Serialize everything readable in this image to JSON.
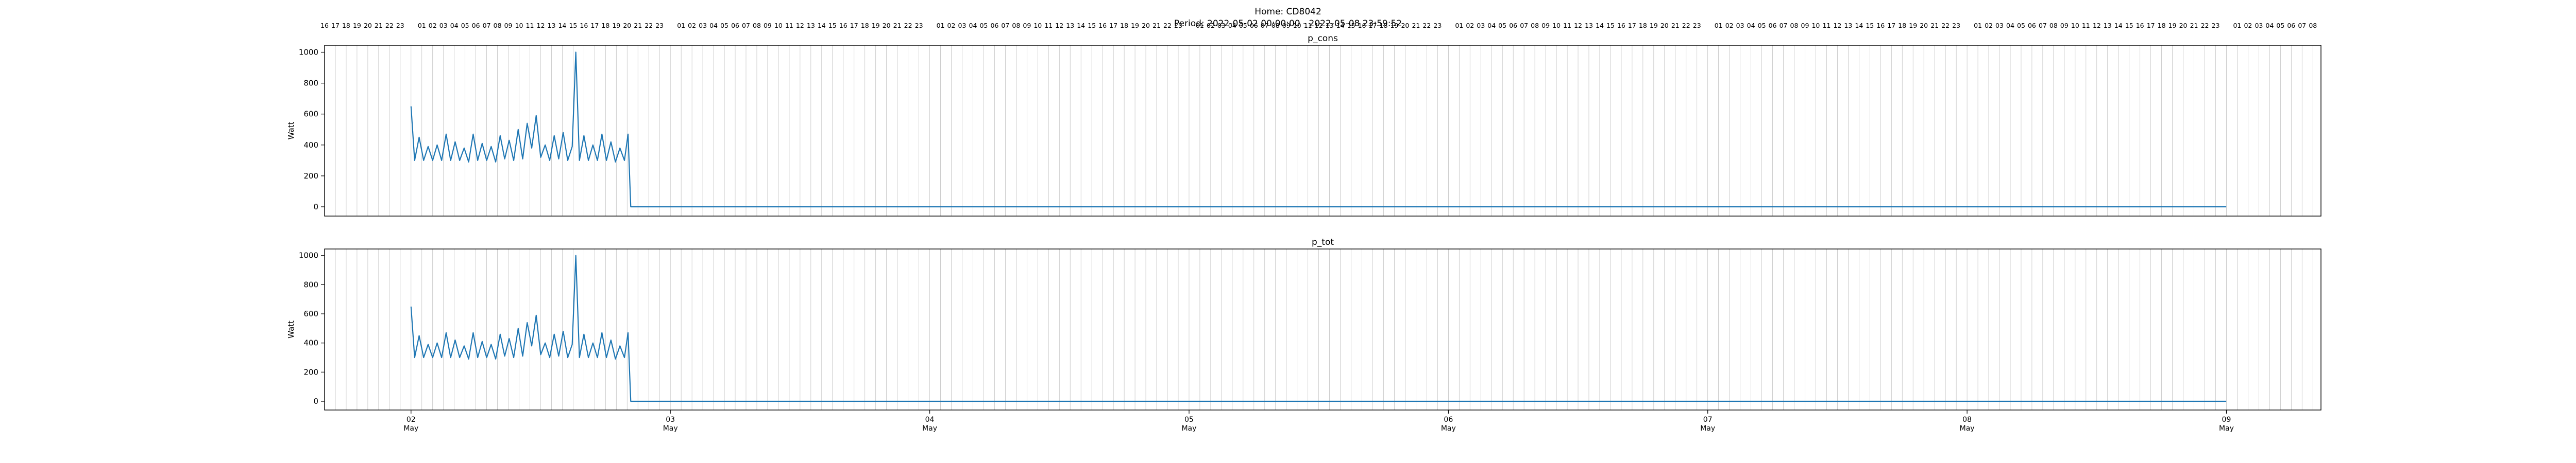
{
  "figure": {
    "title": "Home: CD8042",
    "subtitle": "Period: 2022-05-02 00:00:00 - 2022-05-08 23:59:52",
    "line_color": "#1f77b4",
    "hour_line_color": "#a9a9a9"
  },
  "chart_data": [
    {
      "type": "line",
      "title": "p_cons",
      "xlabel": "",
      "ylabel": "Watt",
      "ylim": [
        -60,
        1045
      ],
      "yticks": [
        0,
        200,
        400,
        600,
        800,
        1000
      ],
      "xlim": [
        "2022-05-01 16:00",
        "2022-05-09 08:45"
      ],
      "grid": "vertical line at every hour",
      "top_hour_labels": true,
      "series": [
        {
          "points": [
            [
              "2022-05-02 00:00",
              650
            ],
            [
              "2022-05-02 00:20",
              300
            ],
            [
              "2022-05-02 00:45",
              450
            ],
            [
              "2022-05-02 01:10",
              300
            ],
            [
              "2022-05-02 01:35",
              390
            ],
            [
              "2022-05-02 02:00",
              300
            ],
            [
              "2022-05-02 02:25",
              400
            ],
            [
              "2022-05-02 02:50",
              300
            ],
            [
              "2022-05-02 03:15",
              470
            ],
            [
              "2022-05-02 03:40",
              300
            ],
            [
              "2022-05-02 04:05",
              420
            ],
            [
              "2022-05-02 04:30",
              300
            ],
            [
              "2022-05-02 04:55",
              380
            ],
            [
              "2022-05-02 05:20",
              290
            ],
            [
              "2022-05-02 05:45",
              470
            ],
            [
              "2022-05-02 06:10",
              300
            ],
            [
              "2022-05-02 06:35",
              410
            ],
            [
              "2022-05-02 07:00",
              300
            ],
            [
              "2022-05-02 07:25",
              390
            ],
            [
              "2022-05-02 07:50",
              290
            ],
            [
              "2022-05-02 08:15",
              460
            ],
            [
              "2022-05-02 08:40",
              310
            ],
            [
              "2022-05-02 09:05",
              430
            ],
            [
              "2022-05-02 09:30",
              300
            ],
            [
              "2022-05-02 09:55",
              500
            ],
            [
              "2022-05-02 10:20",
              310
            ],
            [
              "2022-05-02 10:45",
              540
            ],
            [
              "2022-05-02 11:10",
              380
            ],
            [
              "2022-05-02 11:35",
              590
            ],
            [
              "2022-05-02 12:00",
              320
            ],
            [
              "2022-05-02 12:25",
              400
            ],
            [
              "2022-05-02 12:50",
              300
            ],
            [
              "2022-05-02 13:15",
              460
            ],
            [
              "2022-05-02 13:40",
              310
            ],
            [
              "2022-05-02 14:05",
              480
            ],
            [
              "2022-05-02 14:30",
              300
            ],
            [
              "2022-05-02 14:55",
              390
            ],
            [
              "2022-05-02 15:15",
              1000
            ],
            [
              "2022-05-02 15:35",
              300
            ],
            [
              "2022-05-02 16:00",
              460
            ],
            [
              "2022-05-02 16:25",
              300
            ],
            [
              "2022-05-02 16:50",
              400
            ],
            [
              "2022-05-02 17:15",
              300
            ],
            [
              "2022-05-02 17:40",
              470
            ],
            [
              "2022-05-02 18:05",
              300
            ],
            [
              "2022-05-02 18:30",
              420
            ],
            [
              "2022-05-02 18:55",
              290
            ],
            [
              "2022-05-02 19:20",
              380
            ],
            [
              "2022-05-02 19:45",
              300
            ],
            [
              "2022-05-02 20:05",
              470
            ],
            [
              "2022-05-02 20:20",
              0
            ],
            [
              "2022-05-08 23:59",
              0
            ]
          ]
        }
      ]
    },
    {
      "type": "line",
      "title": "p_tot",
      "xlabel": "",
      "ylabel": "Watt",
      "ylim": [
        -60,
        1045
      ],
      "yticks": [
        0,
        200,
        400,
        600,
        800,
        1000
      ],
      "xlim": [
        "2022-05-01 16:00",
        "2022-05-09 08:45"
      ],
      "grid": "vertical line at every hour",
      "top_hour_labels": false,
      "bottom_day_ticks": [
        {
          "x": "2022-05-02 00:00",
          "day": "02",
          "month": "May"
        },
        {
          "x": "2022-05-03 00:00",
          "day": "03",
          "month": "May"
        },
        {
          "x": "2022-05-04 00:00",
          "day": "04",
          "month": "May"
        },
        {
          "x": "2022-05-05 00:00",
          "day": "05",
          "month": "May"
        },
        {
          "x": "2022-05-06 00:00",
          "day": "06",
          "month": "May"
        },
        {
          "x": "2022-05-07 00:00",
          "day": "07",
          "month": "May"
        },
        {
          "x": "2022-05-08 00:00",
          "day": "08",
          "month": "May"
        },
        {
          "x": "2022-05-09 00:00",
          "day": "09",
          "month": "May"
        }
      ],
      "series": [
        {
          "points": [
            [
              "2022-05-02 00:00",
              650
            ],
            [
              "2022-05-02 00:20",
              300
            ],
            [
              "2022-05-02 00:45",
              450
            ],
            [
              "2022-05-02 01:10",
              300
            ],
            [
              "2022-05-02 01:35",
              390
            ],
            [
              "2022-05-02 02:00",
              300
            ],
            [
              "2022-05-02 02:25",
              400
            ],
            [
              "2022-05-02 02:50",
              300
            ],
            [
              "2022-05-02 03:15",
              470
            ],
            [
              "2022-05-02 03:40",
              300
            ],
            [
              "2022-05-02 04:05",
              420
            ],
            [
              "2022-05-02 04:30",
              300
            ],
            [
              "2022-05-02 04:55",
              380
            ],
            [
              "2022-05-02 05:20",
              290
            ],
            [
              "2022-05-02 05:45",
              470
            ],
            [
              "2022-05-02 06:10",
              300
            ],
            [
              "2022-05-02 06:35",
              410
            ],
            [
              "2022-05-02 07:00",
              300
            ],
            [
              "2022-05-02 07:25",
              390
            ],
            [
              "2022-05-02 07:50",
              290
            ],
            [
              "2022-05-02 08:15",
              460
            ],
            [
              "2022-05-02 08:40",
              310
            ],
            [
              "2022-05-02 09:05",
              430
            ],
            [
              "2022-05-02 09:30",
              300
            ],
            [
              "2022-05-02 09:55",
              500
            ],
            [
              "2022-05-02 10:20",
              310
            ],
            [
              "2022-05-02 10:45",
              540
            ],
            [
              "2022-05-02 11:10",
              380
            ],
            [
              "2022-05-02 11:35",
              590
            ],
            [
              "2022-05-02 12:00",
              320
            ],
            [
              "2022-05-02 12:25",
              400
            ],
            [
              "2022-05-02 12:50",
              300
            ],
            [
              "2022-05-02 13:15",
              460
            ],
            [
              "2022-05-02 13:40",
              310
            ],
            [
              "2022-05-02 14:05",
              480
            ],
            [
              "2022-05-02 14:30",
              300
            ],
            [
              "2022-05-02 14:55",
              390
            ],
            [
              "2022-05-02 15:15",
              1000
            ],
            [
              "2022-05-02 15:35",
              300
            ],
            [
              "2022-05-02 16:00",
              460
            ],
            [
              "2022-05-02 16:25",
              300
            ],
            [
              "2022-05-02 16:50",
              400
            ],
            [
              "2022-05-02 17:15",
              300
            ],
            [
              "2022-05-02 17:40",
              470
            ],
            [
              "2022-05-02 18:05",
              300
            ],
            [
              "2022-05-02 18:30",
              420
            ],
            [
              "2022-05-02 18:55",
              290
            ],
            [
              "2022-05-02 19:20",
              380
            ],
            [
              "2022-05-02 19:45",
              300
            ],
            [
              "2022-05-02 20:05",
              470
            ],
            [
              "2022-05-02 20:20",
              0
            ],
            [
              "2022-05-08 23:59",
              0
            ]
          ]
        }
      ]
    }
  ]
}
